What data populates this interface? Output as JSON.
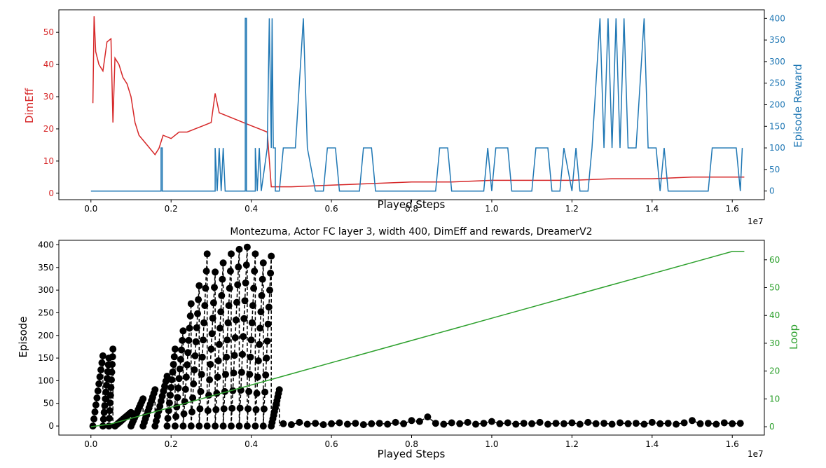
{
  "colors": {
    "dimeff": "#d62728",
    "reward": "#1f77b4",
    "loop": "#2ca02c",
    "episode": "#000000"
  },
  "chart_data": [
    {
      "type": "line",
      "title": "",
      "xlabel": "Played Steps",
      "x_offset_text": "1e7",
      "xlim": [
        -0.08,
        1.68
      ],
      "xticks": [
        "0.0",
        "0.2",
        "0.4",
        "0.6",
        "0.8",
        "1.0",
        "1.2",
        "1.4",
        "1.6"
      ],
      "ylabel": "DimEff",
      "ylim": [
        -2,
        57
      ],
      "yticks": [
        "0",
        "10",
        "20",
        "30",
        "40",
        "50"
      ],
      "ylabel_right": "Episode Reward",
      "ylim_right": [
        -20,
        420
      ],
      "yticks_right": [
        "0",
        "50",
        "100",
        "150",
        "200",
        "250",
        "300",
        "350",
        "400"
      ],
      "series": [
        {
          "name": "DimEff",
          "axis": "left",
          "color": "#d62728",
          "points": [
            [
              0.005,
              28
            ],
            [
              0.008,
              55
            ],
            [
              0.012,
              44
            ],
            [
              0.02,
              40
            ],
            [
              0.03,
              38
            ],
            [
              0.04,
              47
            ],
            [
              0.05,
              48
            ],
            [
              0.055,
              22
            ],
            [
              0.06,
              42
            ],
            [
              0.07,
              40
            ],
            [
              0.08,
              36
            ],
            [
              0.09,
              34
            ],
            [
              0.1,
              30
            ],
            [
              0.11,
              22
            ],
            [
              0.12,
              18
            ],
            [
              0.14,
              15
            ],
            [
              0.16,
              12
            ],
            [
              0.17,
              14
            ],
            [
              0.18,
              18
            ],
            [
              0.2,
              17
            ],
            [
              0.22,
              19
            ],
            [
              0.24,
              19
            ],
            [
              0.26,
              20
            ],
            [
              0.28,
              21
            ],
            [
              0.3,
              22
            ],
            [
              0.31,
              31
            ],
            [
              0.32,
              25
            ],
            [
              0.34,
              24
            ],
            [
              0.36,
              23
            ],
            [
              0.38,
              22
            ],
            [
              0.4,
              21
            ],
            [
              0.42,
              20
            ],
            [
              0.44,
              19
            ],
            [
              0.45,
              2
            ],
            [
              0.5,
              2
            ],
            [
              0.6,
              2.5
            ],
            [
              0.7,
              3
            ],
            [
              0.8,
              3.5
            ],
            [
              0.9,
              3.5
            ],
            [
              1.0,
              4
            ],
            [
              1.1,
              4
            ],
            [
              1.2,
              4
            ],
            [
              1.3,
              4.5
            ],
            [
              1.4,
              4.5
            ],
            [
              1.5,
              5
            ],
            [
              1.6,
              5
            ],
            [
              1.63,
              5
            ]
          ]
        },
        {
          "name": "Episode Reward",
          "axis": "right",
          "color": "#1f77b4",
          "points": [
            [
              0.0,
              0
            ],
            [
              0.175,
              0
            ],
            [
              0.175,
              100
            ],
            [
              0.178,
              100
            ],
            [
              0.178,
              0
            ],
            [
              0.31,
              0
            ],
            [
              0.31,
              100
            ],
            [
              0.315,
              0
            ],
            [
              0.32,
              100
            ],
            [
              0.325,
              0
            ],
            [
              0.33,
              100
            ],
            [
              0.335,
              0
            ],
            [
              0.385,
              0
            ],
            [
              0.385,
              400
            ],
            [
              0.388,
              400
            ],
            [
              0.388,
              0
            ],
            [
              0.41,
              0
            ],
            [
              0.41,
              100
            ],
            [
              0.415,
              0
            ],
            [
              0.42,
              100
            ],
            [
              0.425,
              0
            ],
            [
              0.44,
              100
            ],
            [
              0.445,
              400
            ],
            [
              0.45,
              100
            ],
            [
              0.452,
              400
            ],
            [
              0.455,
              100
            ],
            [
              0.46,
              100
            ],
            [
              0.46,
              0
            ],
            [
              0.47,
              0
            ],
            [
              0.48,
              100
            ],
            [
              0.5,
              100
            ],
            [
              0.51,
              100
            ],
            [
              0.53,
              400
            ],
            [
              0.54,
              100
            ],
            [
              0.56,
              0
            ],
            [
              0.58,
              0
            ],
            [
              0.59,
              100
            ],
            [
              0.61,
              100
            ],
            [
              0.62,
              0
            ],
            [
              0.67,
              0
            ],
            [
              0.68,
              100
            ],
            [
              0.7,
              100
            ],
            [
              0.71,
              0
            ],
            [
              0.86,
              0
            ],
            [
              0.87,
              100
            ],
            [
              0.89,
              100
            ],
            [
              0.9,
              0
            ],
            [
              0.98,
              0
            ],
            [
              0.99,
              100
            ],
            [
              1.0,
              0
            ],
            [
              1.01,
              100
            ],
            [
              1.04,
              100
            ],
            [
              1.05,
              0
            ],
            [
              1.1,
              0
            ],
            [
              1.11,
              100
            ],
            [
              1.14,
              100
            ],
            [
              1.15,
              0
            ],
            [
              1.17,
              0
            ],
            [
              1.18,
              100
            ],
            [
              1.2,
              0
            ],
            [
              1.21,
              100
            ],
            [
              1.22,
              0
            ],
            [
              1.24,
              0
            ],
            [
              1.25,
              100
            ],
            [
              1.27,
              400
            ],
            [
              1.28,
              100
            ],
            [
              1.29,
              400
            ],
            [
              1.3,
              100
            ],
            [
              1.31,
              400
            ],
            [
              1.32,
              100
            ],
            [
              1.33,
              400
            ],
            [
              1.34,
              100
            ],
            [
              1.36,
              100
            ],
            [
              1.38,
              400
            ],
            [
              1.39,
              100
            ],
            [
              1.41,
              100
            ],
            [
              1.42,
              0
            ],
            [
              1.43,
              100
            ],
            [
              1.44,
              0
            ],
            [
              1.46,
              0
            ],
            [
              1.48,
              0
            ],
            [
              1.5,
              0
            ],
            [
              1.54,
              0
            ],
            [
              1.55,
              100
            ],
            [
              1.61,
              100
            ],
            [
              1.62,
              0
            ],
            [
              1.625,
              100
            ]
          ]
        }
      ]
    },
    {
      "type": "line",
      "title": "Montezuma, Actor FC layer 3, width 400, DimEff and rewards, DreamerV2",
      "xlabel": "Played Steps",
      "x_offset_text": "1e7",
      "xlim": [
        -0.08,
        1.68
      ],
      "xticks": [
        "0.0",
        "0.2",
        "0.4",
        "0.6",
        "0.8",
        "1.0",
        "1.2",
        "1.4",
        "1.6"
      ],
      "ylabel": "Episode",
      "ylim": [
        -20,
        410
      ],
      "yticks": [
        "0",
        "50",
        "100",
        "150",
        "200",
        "250",
        "300",
        "350",
        "400"
      ],
      "ylabel_right": "Loop",
      "ylim_right": [
        -3,
        67
      ],
      "yticks_right": [
        "0",
        "10",
        "20",
        "30",
        "40",
        "50",
        "60"
      ],
      "series": [
        {
          "name": "Episode",
          "axis": "left",
          "color": "#000000",
          "style": "dashed-markers",
          "sawtooth": [
            {
              "x0": 0.005,
              "x1": 0.03,
              "peak": 155
            },
            {
              "x0": 0.03,
              "x1": 0.045,
              "peak": 150
            },
            {
              "x0": 0.045,
              "x1": 0.055,
              "peak": 170
            },
            {
              "x0": 0.06,
              "x1": 0.1,
              "peak": 30
            },
            {
              "x0": 0.1,
              "x1": 0.13,
              "peak": 60
            },
            {
              "x0": 0.13,
              "x1": 0.16,
              "peak": 80
            },
            {
              "x0": 0.16,
              "x1": 0.19,
              "peak": 110
            },
            {
              "x0": 0.19,
              "x1": 0.21,
              "peak": 170
            },
            {
              "x0": 0.21,
              "x1": 0.23,
              "peak": 210
            },
            {
              "x0": 0.23,
              "x1": 0.25,
              "peak": 270
            },
            {
              "x0": 0.25,
              "x1": 0.27,
              "peak": 310
            },
            {
              "x0": 0.27,
              "x1": 0.29,
              "peak": 380
            },
            {
              "x0": 0.29,
              "x1": 0.31,
              "peak": 340
            },
            {
              "x0": 0.31,
              "x1": 0.33,
              "peak": 360
            },
            {
              "x0": 0.33,
              "x1": 0.35,
              "peak": 380
            },
            {
              "x0": 0.35,
              "x1": 0.37,
              "peak": 390
            },
            {
              "x0": 0.37,
              "x1": 0.39,
              "peak": 395
            },
            {
              "x0": 0.39,
              "x1": 0.41,
              "peak": 380
            },
            {
              "x0": 0.41,
              "x1": 0.43,
              "peak": 360
            },
            {
              "x0": 0.43,
              "x1": 0.45,
              "peak": 375
            },
            {
              "x0": 0.45,
              "x1": 0.47,
              "peak": 80
            }
          ],
          "tail_points": [
            [
              0.48,
              5
            ],
            [
              0.5,
              3
            ],
            [
              0.52,
              8
            ],
            [
              0.54,
              4
            ],
            [
              0.56,
              6
            ],
            [
              0.58,
              3
            ],
            [
              0.6,
              5
            ],
            [
              0.62,
              7
            ],
            [
              0.64,
              4
            ],
            [
              0.66,
              6
            ],
            [
              0.68,
              3
            ],
            [
              0.7,
              5
            ],
            [
              0.72,
              6
            ],
            [
              0.74,
              4
            ],
            [
              0.76,
              8
            ],
            [
              0.78,
              5
            ],
            [
              0.8,
              12
            ],
            [
              0.82,
              10
            ],
            [
              0.84,
              20
            ],
            [
              0.86,
              6
            ],
            [
              0.88,
              4
            ],
            [
              0.9,
              7
            ],
            [
              0.92,
              5
            ],
            [
              0.94,
              8
            ],
            [
              0.96,
              4
            ],
            [
              0.98,
              6
            ],
            [
              1.0,
              10
            ],
            [
              1.02,
              5
            ],
            [
              1.04,
              7
            ],
            [
              1.06,
              4
            ],
            [
              1.08,
              6
            ],
            [
              1.1,
              5
            ],
            [
              1.12,
              8
            ],
            [
              1.14,
              4
            ],
            [
              1.16,
              6
            ],
            [
              1.18,
              5
            ],
            [
              1.2,
              7
            ],
            [
              1.22,
              4
            ],
            [
              1.24,
              8
            ],
            [
              1.26,
              5
            ],
            [
              1.28,
              6
            ],
            [
              1.3,
              4
            ],
            [
              1.32,
              7
            ],
            [
              1.34,
              5
            ],
            [
              1.36,
              6
            ],
            [
              1.38,
              4
            ],
            [
              1.4,
              8
            ],
            [
              1.42,
              5
            ],
            [
              1.44,
              6
            ],
            [
              1.46,
              4
            ],
            [
              1.48,
              7
            ],
            [
              1.5,
              12
            ],
            [
              1.52,
              5
            ],
            [
              1.54,
              6
            ],
            [
              1.56,
              4
            ],
            [
              1.58,
              7
            ],
            [
              1.6,
              5
            ],
            [
              1.62,
              6
            ]
          ]
        },
        {
          "name": "Loop",
          "axis": "right",
          "color": "#2ca02c",
          "points": [
            [
              0.0,
              0
            ],
            [
              0.05,
              1
            ],
            [
              0.1,
              3
            ],
            [
              0.15,
              5
            ],
            [
              0.2,
              7
            ],
            [
              0.25,
              9
            ],
            [
              0.3,
              11
            ],
            [
              0.35,
              13
            ],
            [
              0.4,
              15
            ],
            [
              0.45,
              17
            ],
            [
              0.5,
              19
            ],
            [
              0.6,
              23
            ],
            [
              0.7,
              27
            ],
            [
              0.8,
              31
            ],
            [
              0.9,
              35
            ],
            [
              1.0,
              39
            ],
            [
              1.1,
              43
            ],
            [
              1.2,
              47
            ],
            [
              1.3,
              51
            ],
            [
              1.4,
              55
            ],
            [
              1.5,
              59
            ],
            [
              1.6,
              63
            ],
            [
              1.63,
              63
            ]
          ]
        }
      ]
    }
  ]
}
